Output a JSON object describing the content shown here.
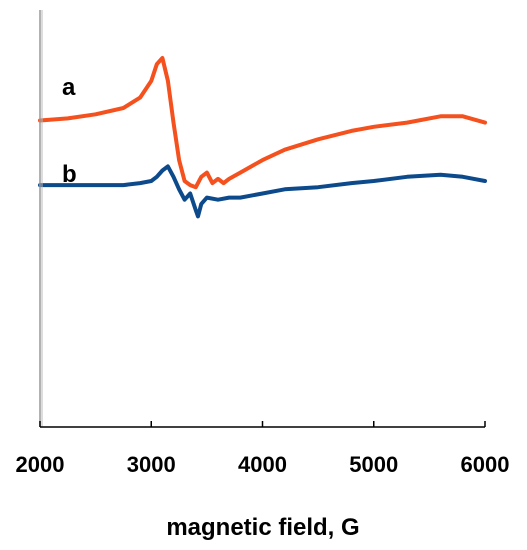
{
  "chart_data": {
    "type": "line",
    "title": "",
    "xlabel": "magnetic field, G",
    "ylabel": "",
    "xlim": [
      2000,
      6000
    ],
    "ylim": [
      0,
      1
    ],
    "x_ticks": [
      2000,
      3000,
      4000,
      5000,
      6000
    ],
    "x_tick_labels": [
      "2000",
      "3000",
      "4000",
      "5000",
      "6000"
    ],
    "y_axis_ticks_shown": false,
    "grid": false,
    "legend": "none",
    "series": [
      {
        "name": "a",
        "color": "#f4511e",
        "x": [
          2000,
          2250,
          2500,
          2750,
          2900,
          3000,
          3050,
          3100,
          3150,
          3200,
          3250,
          3300,
          3350,
          3400,
          3450,
          3500,
          3550,
          3600,
          3650,
          3700,
          3800,
          4000,
          4200,
          4500,
          4800,
          5000,
          5300,
          5600,
          5800,
          6000
        ],
        "y": [
          0.735,
          0.74,
          0.75,
          0.765,
          0.79,
          0.83,
          0.87,
          0.885,
          0.83,
          0.73,
          0.64,
          0.59,
          0.58,
          0.575,
          0.6,
          0.61,
          0.585,
          0.595,
          0.585,
          0.595,
          0.61,
          0.64,
          0.665,
          0.69,
          0.71,
          0.72,
          0.73,
          0.745,
          0.745,
          0.73
        ]
      },
      {
        "name": "b",
        "color": "#0d4a8c",
        "x": [
          2000,
          2250,
          2500,
          2750,
          2900,
          3000,
          3050,
          3100,
          3150,
          3200,
          3250,
          3300,
          3350,
          3400,
          3420,
          3450,
          3500,
          3600,
          3700,
          3800,
          4000,
          4200,
          4500,
          4800,
          5000,
          5300,
          5600,
          5800,
          6000
        ],
        "y": [
          0.58,
          0.58,
          0.58,
          0.58,
          0.585,
          0.59,
          0.6,
          0.615,
          0.625,
          0.6,
          0.57,
          0.545,
          0.56,
          0.52,
          0.505,
          0.535,
          0.55,
          0.545,
          0.55,
          0.55,
          0.56,
          0.57,
          0.575,
          0.585,
          0.59,
          0.6,
          0.605,
          0.6,
          0.59
        ]
      }
    ]
  }
}
